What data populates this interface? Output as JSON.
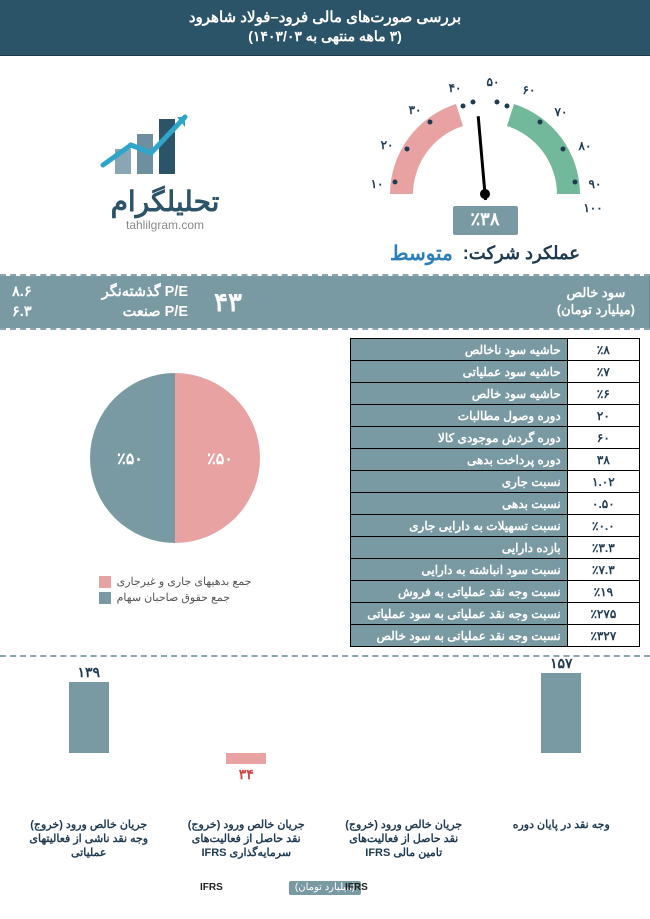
{
  "header": {
    "title": "بررسی صورت‌های مالی فرود–فولاد شاهرود",
    "subtitle": "(۳ ماهه منتهی به ۱۴۰۳/۰۳)"
  },
  "brand": {
    "name": "تحلیلگرام",
    "domain": "tahlilgram.com",
    "bar_color": "#2c5469",
    "arrow_color": "#2fa6c9"
  },
  "gauge": {
    "ticks": [
      "۱۰",
      "۲۰",
      "۳۰",
      "۴۰",
      "۵۰",
      "۶۰",
      "۷۰",
      "۸۰",
      "۹۰",
      "۱۰۰"
    ],
    "green": "#72b89a",
    "red": "#e8a2a2",
    "needle_angle_deg": -5,
    "score_text": "٪۳۸",
    "badge_bg": "#7a9aa3"
  },
  "performance": {
    "label": "عملکرد شرکت:",
    "value": "متوسط",
    "value_color": "#2c7fb8"
  },
  "pe": {
    "trailing_label": "P/E گذشته‌نگر",
    "trailing_value": "۸.۶",
    "industry_label": "P/E صنعت",
    "industry_value": "۶.۳"
  },
  "net_profit": {
    "value": "۴۳",
    "label1": "سود خالص",
    "label2": "(میلیارد تومان)"
  },
  "pie": {
    "slices": [
      {
        "label": "جمع بدهیهای جاری و غیرجاری",
        "value": 50,
        "text": "٪۵۰",
        "color": "#e8a2a2"
      },
      {
        "label": "جمع حقوق صاحبان سهام",
        "value": 50,
        "text": "٪۵۰",
        "color": "#7a9aa3"
      }
    ]
  },
  "ratios": [
    {
      "name": "حاشیه سود ناخالص",
      "value": "٪۸"
    },
    {
      "name": "حاشیه سود عملیاتی",
      "value": "٪۷"
    },
    {
      "name": "حاشیه سود خالص",
      "value": "٪۶"
    },
    {
      "name": "دوره وصول مطالبات",
      "value": "۲۰"
    },
    {
      "name": "دوره گردش موجودی کالا",
      "value": "۶۰"
    },
    {
      "name": "دوره  پرداخت بدهی",
      "value": "۳۸"
    },
    {
      "name": "نسبت جاری",
      "value": "۱.۰۲"
    },
    {
      "name": "نسبت بدهی",
      "value": "۰.۵۰"
    },
    {
      "name": "نسبت تسهیلات به دارایی جاری",
      "value": "٪۰.۰"
    },
    {
      "name": "بازده دارایی",
      "value": "٪۳.۳"
    },
    {
      "name": "نسبت سود انباشته به دارایی",
      "value": "٪۷.۳"
    },
    {
      "name": "نسبت وجه نقد عملیاتی به فروش",
      "value": "٪۱۹"
    },
    {
      "name": "نسبت وجه نقد عملیاتی به سود عملیاتی",
      "value": "٪۲۷۵"
    },
    {
      "name": "نسبت وجه نقد عملیاتی به سود خالص",
      "value": "٪۳۲۷"
    }
  ],
  "cashflow": {
    "unit": "(میلیارد تومان)",
    "bars": [
      {
        "label": "وجه نقد در پایان دوره",
        "value": 157,
        "text": "۱۵۷",
        "neg": false
      },
      {
        "label": "جریان خالص ورود (خروج) نقد حاصل از فعالیت‌های تامین مالی IFRS",
        "value": 0,
        "text": "",
        "neg": false
      },
      {
        "label": "جریان خالص ورود (خروج) نقد حاصل از فعالیت‌های سرمایه‌گذاری IFRS",
        "value": -34,
        "text": "۳۴",
        "neg": true
      },
      {
        "label": "جریان خالص ورود (خروج) وجه نقد ناشی از فعالیتهای عملیاتی",
        "value": 139,
        "text": "۱۳۹",
        "neg": false
      }
    ],
    "ifrs_left": "IFRS",
    "ifrs_right": "IFRS"
  },
  "colors": {
    "panel": "#7a9aa3",
    "header": "#2c5469",
    "accent_red": "#e8a2a2"
  }
}
